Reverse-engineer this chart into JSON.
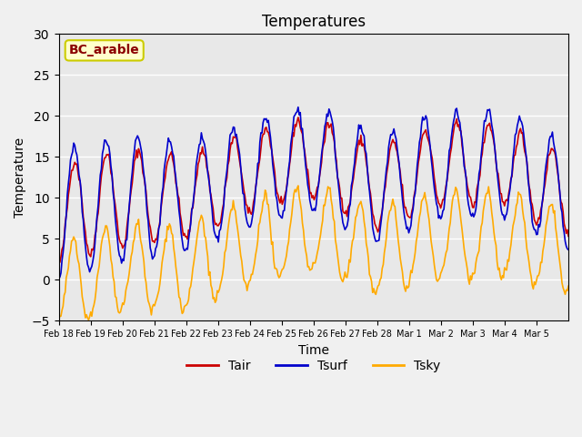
{
  "title": "Temperatures",
  "xlabel": "Time",
  "ylabel": "Temperature",
  "annotation": "BC_arable",
  "ylim": [
    -5,
    30
  ],
  "legend": [
    "Tair",
    "Tsurf",
    "Tsky"
  ],
  "colors": {
    "Tair": "#cc0000",
    "Tsurf": "#0000cc",
    "Tsky": "#ffaa00"
  },
  "background_color": "#e8e8e8",
  "x_tick_labels": [
    "Feb 18",
    "Feb 19",
    "Feb 20",
    "Feb 21",
    "Feb 22",
    "Feb 23",
    "Feb 24",
    "Feb 25",
    "Feb 26",
    "Feb 27",
    "Feb 28",
    "Mar 1",
    "Mar 2",
    "Mar 3",
    "Mar 4",
    "Mar 5"
  ],
  "y_ticks": [
    -5,
    0,
    5,
    10,
    15,
    20,
    25,
    30
  ]
}
